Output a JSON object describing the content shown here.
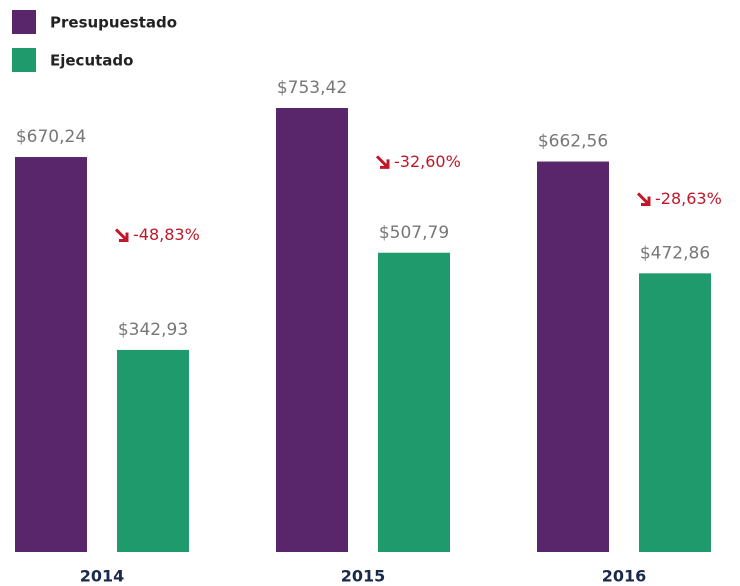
{
  "chart_data": {
    "type": "bar",
    "categories": [
      "2014",
      "2015",
      "2016"
    ],
    "series": [
      {
        "name": "Presupuestado",
        "color": "#59266b",
        "values": [
          670.24,
          753.42,
          662.56
        ],
        "value_labels": [
          "$670,24",
          "$753,42",
          "$662,56"
        ]
      },
      {
        "name": "Ejecutado",
        "color": "#1f9a6c",
        "values": [
          342.93,
          507.79,
          472.86
        ],
        "value_labels": [
          "$342,93",
          "$507,79",
          "$472,86"
        ]
      }
    ],
    "annotations": [
      "-48,83%",
      "-32,60%",
      "-28,63%"
    ],
    "legend": "top-left"
  }
}
